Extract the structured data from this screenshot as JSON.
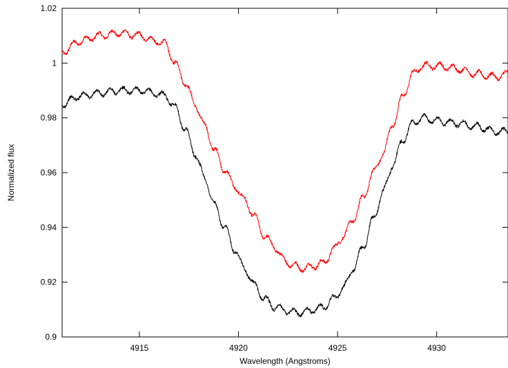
{
  "chart_data": {
    "type": "line",
    "xlabel": "Wavelength (Angstroms)",
    "ylabel": "Normalized flux",
    "xlim": [
      4911.1,
      4933.6
    ],
    "ylim": [
      0.9,
      1.02
    ],
    "x_ticks": [
      4915,
      4920,
      4925,
      4930
    ],
    "x_tick_labels": [
      "4915",
      "4920",
      "4925",
      "4930"
    ],
    "y_ticks": [
      0.9,
      0.92,
      0.94,
      0.96,
      0.98,
      1.0,
      1.02
    ],
    "y_tick_labels": [
      "0.9",
      "0.92",
      "0.94",
      "0.96",
      "0.98",
      "1",
      "1.02"
    ],
    "grid": false,
    "series": [
      {
        "color": "#ff0000",
        "x": [
          4911.1,
          4912.0,
          4913.0,
          4914.0,
          4915.0,
          4915.8,
          4916.3,
          4916.8,
          4917.3,
          4917.8,
          4918.3,
          4918.8,
          4919.3,
          4919.8,
          4920.3,
          4920.8,
          4921.3,
          4921.8,
          4922.3,
          4922.8,
          4923.3,
          4923.8,
          4924.3,
          4924.8,
          4925.3,
          4925.8,
          4926.3,
          4926.8,
          4927.3,
          4927.8,
          4928.3,
          4928.8,
          4929.3,
          4930.0,
          4931.0,
          4932.0,
          4933.0,
          4933.6
        ],
        "y": [
          1.004,
          1.008,
          1.01,
          1.011,
          1.01,
          1.008,
          1.007,
          1.0,
          0.993,
          0.985,
          0.977,
          0.968,
          0.961,
          0.955,
          0.95,
          0.944,
          0.937,
          0.933,
          0.928,
          0.926,
          0.925,
          0.926,
          0.927,
          0.932,
          0.937,
          0.943,
          0.951,
          0.96,
          0.967,
          0.978,
          0.988,
          0.996,
          0.999,
          0.999,
          0.998,
          0.996,
          0.995,
          0.996
        ]
      },
      {
        "color": "#000000",
        "x": [
          4911.1,
          4912.0,
          4913.0,
          4914.0,
          4915.0,
          4915.8,
          4916.3,
          4916.8,
          4917.3,
          4917.8,
          4918.3,
          4918.8,
          4919.3,
          4919.8,
          4920.3,
          4920.8,
          4921.3,
          4921.8,
          4922.3,
          4922.8,
          4923.3,
          4923.8,
          4924.3,
          4924.8,
          4925.3,
          4925.8,
          4926.3,
          4926.8,
          4927.3,
          4927.8,
          4928.3,
          4928.8,
          4929.3,
          4930.0,
          4931.0,
          4932.0,
          4933.0,
          4933.6
        ],
        "y": [
          0.985,
          0.988,
          0.989,
          0.99,
          0.99,
          0.989,
          0.988,
          0.984,
          0.976,
          0.967,
          0.958,
          0.948,
          0.94,
          0.932,
          0.925,
          0.919,
          0.914,
          0.911,
          0.91,
          0.909,
          0.909,
          0.91,
          0.911,
          0.914,
          0.918,
          0.925,
          0.933,
          0.943,
          0.953,
          0.963,
          0.972,
          0.978,
          0.98,
          0.979,
          0.978,
          0.977,
          0.975,
          0.975
        ]
      }
    ]
  }
}
